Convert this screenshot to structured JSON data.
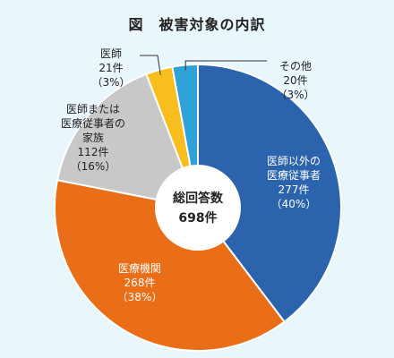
{
  "chart_data": {
    "type": "pie",
    "title": "図　被害対象の内訳",
    "center_label": [
      "総回答数",
      "698件"
    ],
    "categories": [
      "医師以外の医療従事者",
      "医療機関",
      "医師または医療従事者の家族",
      "医師",
      "その他"
    ],
    "values": [
      277,
      268,
      112,
      21,
      20
    ],
    "percents": [
      "40%",
      "38%",
      "16%",
      "3%",
      "3%"
    ],
    "labels": [
      [
        "医師以外の",
        "医療従事者",
        "277件",
        "（40%）"
      ],
      [
        "医療機関",
        "268件",
        "（38%）"
      ],
      [
        "医師または",
        "医療従事者の",
        "家族",
        "112件",
        "（16%）"
      ],
      [
        "医師",
        "21件",
        "（3%）"
      ],
      [
        "その他",
        "20件",
        "（3%）"
      ]
    ],
    "colors": [
      "#2b63ad",
      "#ea6d17",
      "#c8c8c8",
      "#f7be1e",
      "#2fa3d9"
    ]
  }
}
